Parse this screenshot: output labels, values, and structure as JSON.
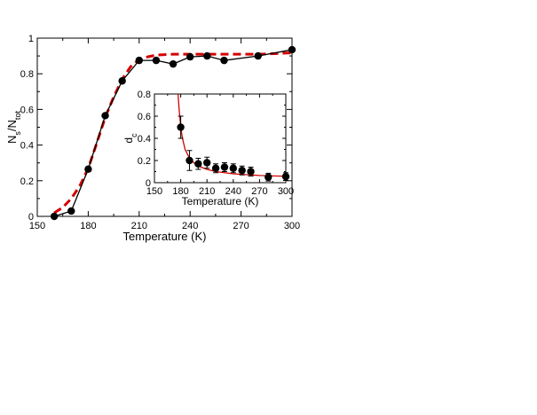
{
  "colors": {
    "data": "#000000",
    "fit": "#d40000",
    "axes": "#000000"
  },
  "chart_data": [
    {
      "type": "line",
      "xlabel": "Temperature (K)",
      "ylabel": {
        "base": "N",
        "sub1": "s",
        "mid": "/N",
        "sub2": "tot"
      },
      "xlim": [
        150,
        300
      ],
      "ylim": [
        0,
        1
      ],
      "xticks": [
        "150",
        "180",
        "210",
        "240",
        "270",
        "300"
      ],
      "yticks": [
        "0",
        "0.2",
        "0.4",
        "0.6",
        "0.8",
        "1"
      ],
      "grid": false,
      "legend": "none",
      "series": [
        {
          "style": "solid-black-with-circle-markers",
          "x": [
            160,
            170,
            180,
            190,
            200,
            210,
            220,
            230,
            240,
            250,
            260,
            280,
            300
          ],
          "y": [
            0.0,
            0.03,
            0.265,
            0.565,
            0.76,
            0.875,
            0.875,
            0.855,
            0.895,
            0.9,
            0.875,
            0.9,
            0.935
          ]
        },
        {
          "style": "dashed-red-fit",
          "x": [
            160,
            165,
            170,
            175,
            180,
            185,
            190,
            195,
            200,
            205,
            210,
            215,
            220,
            230,
            240,
            250,
            260,
            270,
            280,
            290,
            300
          ],
          "y": [
            0.02,
            0.05,
            0.1,
            0.17,
            0.27,
            0.41,
            0.555,
            0.67,
            0.77,
            0.84,
            0.88,
            0.895,
            0.905,
            0.91,
            0.91,
            0.91,
            0.91,
            0.91,
            0.91,
            0.913,
            0.918
          ]
        }
      ]
    },
    {
      "type": "scatter",
      "xlabel": "Temperature (K)",
      "ylabel": {
        "base": "d",
        "sub1": "c"
      },
      "xlim": [
        150,
        300
      ],
      "ylim": [
        0,
        0.8
      ],
      "xticks": [
        "150",
        "180",
        "210",
        "240",
        "270",
        "300"
      ],
      "yticks": [
        "0",
        "0.2",
        "0.4",
        "0.6",
        "0.8"
      ],
      "grid": false,
      "series": [
        {
          "style": "black-circles-with-error-bars",
          "x": [
            180,
            190,
            200,
            210,
            220,
            230,
            240,
            250,
            260,
            280,
            300
          ],
          "y": [
            0.5,
            0.2,
            0.17,
            0.18,
            0.13,
            0.14,
            0.13,
            0.11,
            0.1,
            0.05,
            0.055
          ],
          "err": [
            0.1,
            0.09,
            0.05,
            0.05,
            0.04,
            0.04,
            0.04,
            0.04,
            0.04,
            0.035,
            0.035
          ]
        },
        {
          "style": "solid-red-fit",
          "x": [
            177,
            178,
            180,
            182,
            185,
            190,
            195,
            200,
            210,
            220,
            230,
            240,
            250,
            260,
            270,
            280,
            290,
            300
          ],
          "y": [
            0.8,
            0.68,
            0.5,
            0.4,
            0.3,
            0.22,
            0.18,
            0.15,
            0.12,
            0.1,
            0.09,
            0.08,
            0.075,
            0.07,
            0.065,
            0.062,
            0.06,
            0.058
          ]
        }
      ]
    }
  ]
}
